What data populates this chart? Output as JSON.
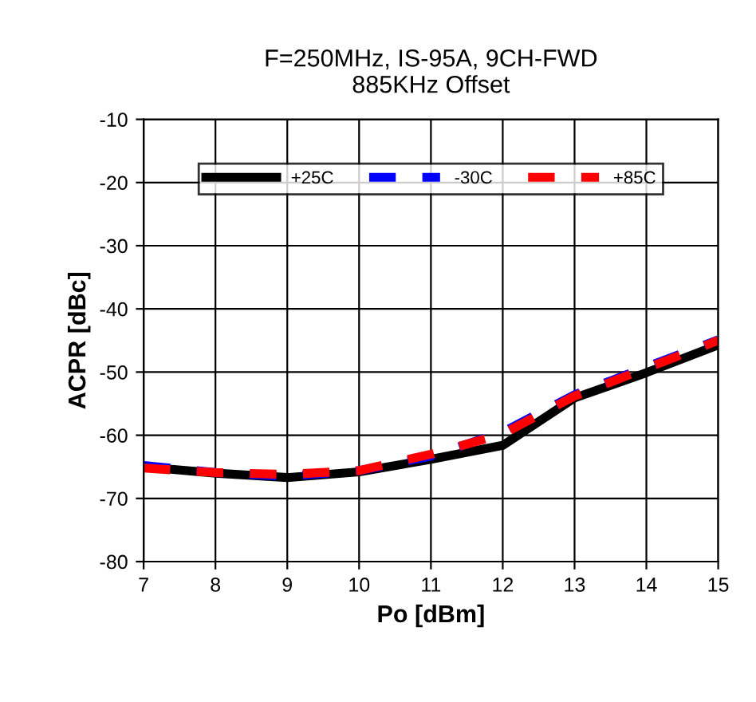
{
  "chart_data": {
    "type": "line",
    "title": "F=250MHz, IS-95A, 9CH-FWD\n885KHz Offset",
    "xlabel": "Po [dBm]",
    "ylabel": "ACPR [dBc]",
    "x": [
      7,
      8,
      9,
      10,
      11,
      12,
      13,
      14,
      15
    ],
    "series": [
      {
        "name": "+25C",
        "color": "#000000",
        "line_style": "solid",
        "values": [
          -65,
          -66,
          -66.7,
          -65.8,
          -63.8,
          -61.6,
          -54.1,
          -50.1,
          -45.7
        ]
      },
      {
        "name": "-30C",
        "color": "#0000ff",
        "line_style": "dashed",
        "values": [
          -64.8,
          -65.9,
          -66.5,
          -65.6,
          -63.3,
          -59.5,
          -53.6,
          -49.2,
          -44.9
        ]
      },
      {
        "name": "+85C",
        "color": "#ff0000",
        "line_style": "dashed",
        "values": [
          -65.2,
          -65.9,
          -66.2,
          -65.6,
          -63,
          -59.8,
          -53.8,
          -49.4,
          -45
        ]
      }
    ],
    "xlim": [
      7,
      15
    ],
    "xticks": [
      7,
      8,
      9,
      10,
      11,
      12,
      13,
      14,
      15
    ],
    "ylim": [
      -80,
      -10
    ],
    "yticks": [
      -80,
      -70,
      -60,
      -50,
      -40,
      -30,
      -20,
      -10
    ],
    "grid": true,
    "legend": "top",
    "marker": "none"
  }
}
